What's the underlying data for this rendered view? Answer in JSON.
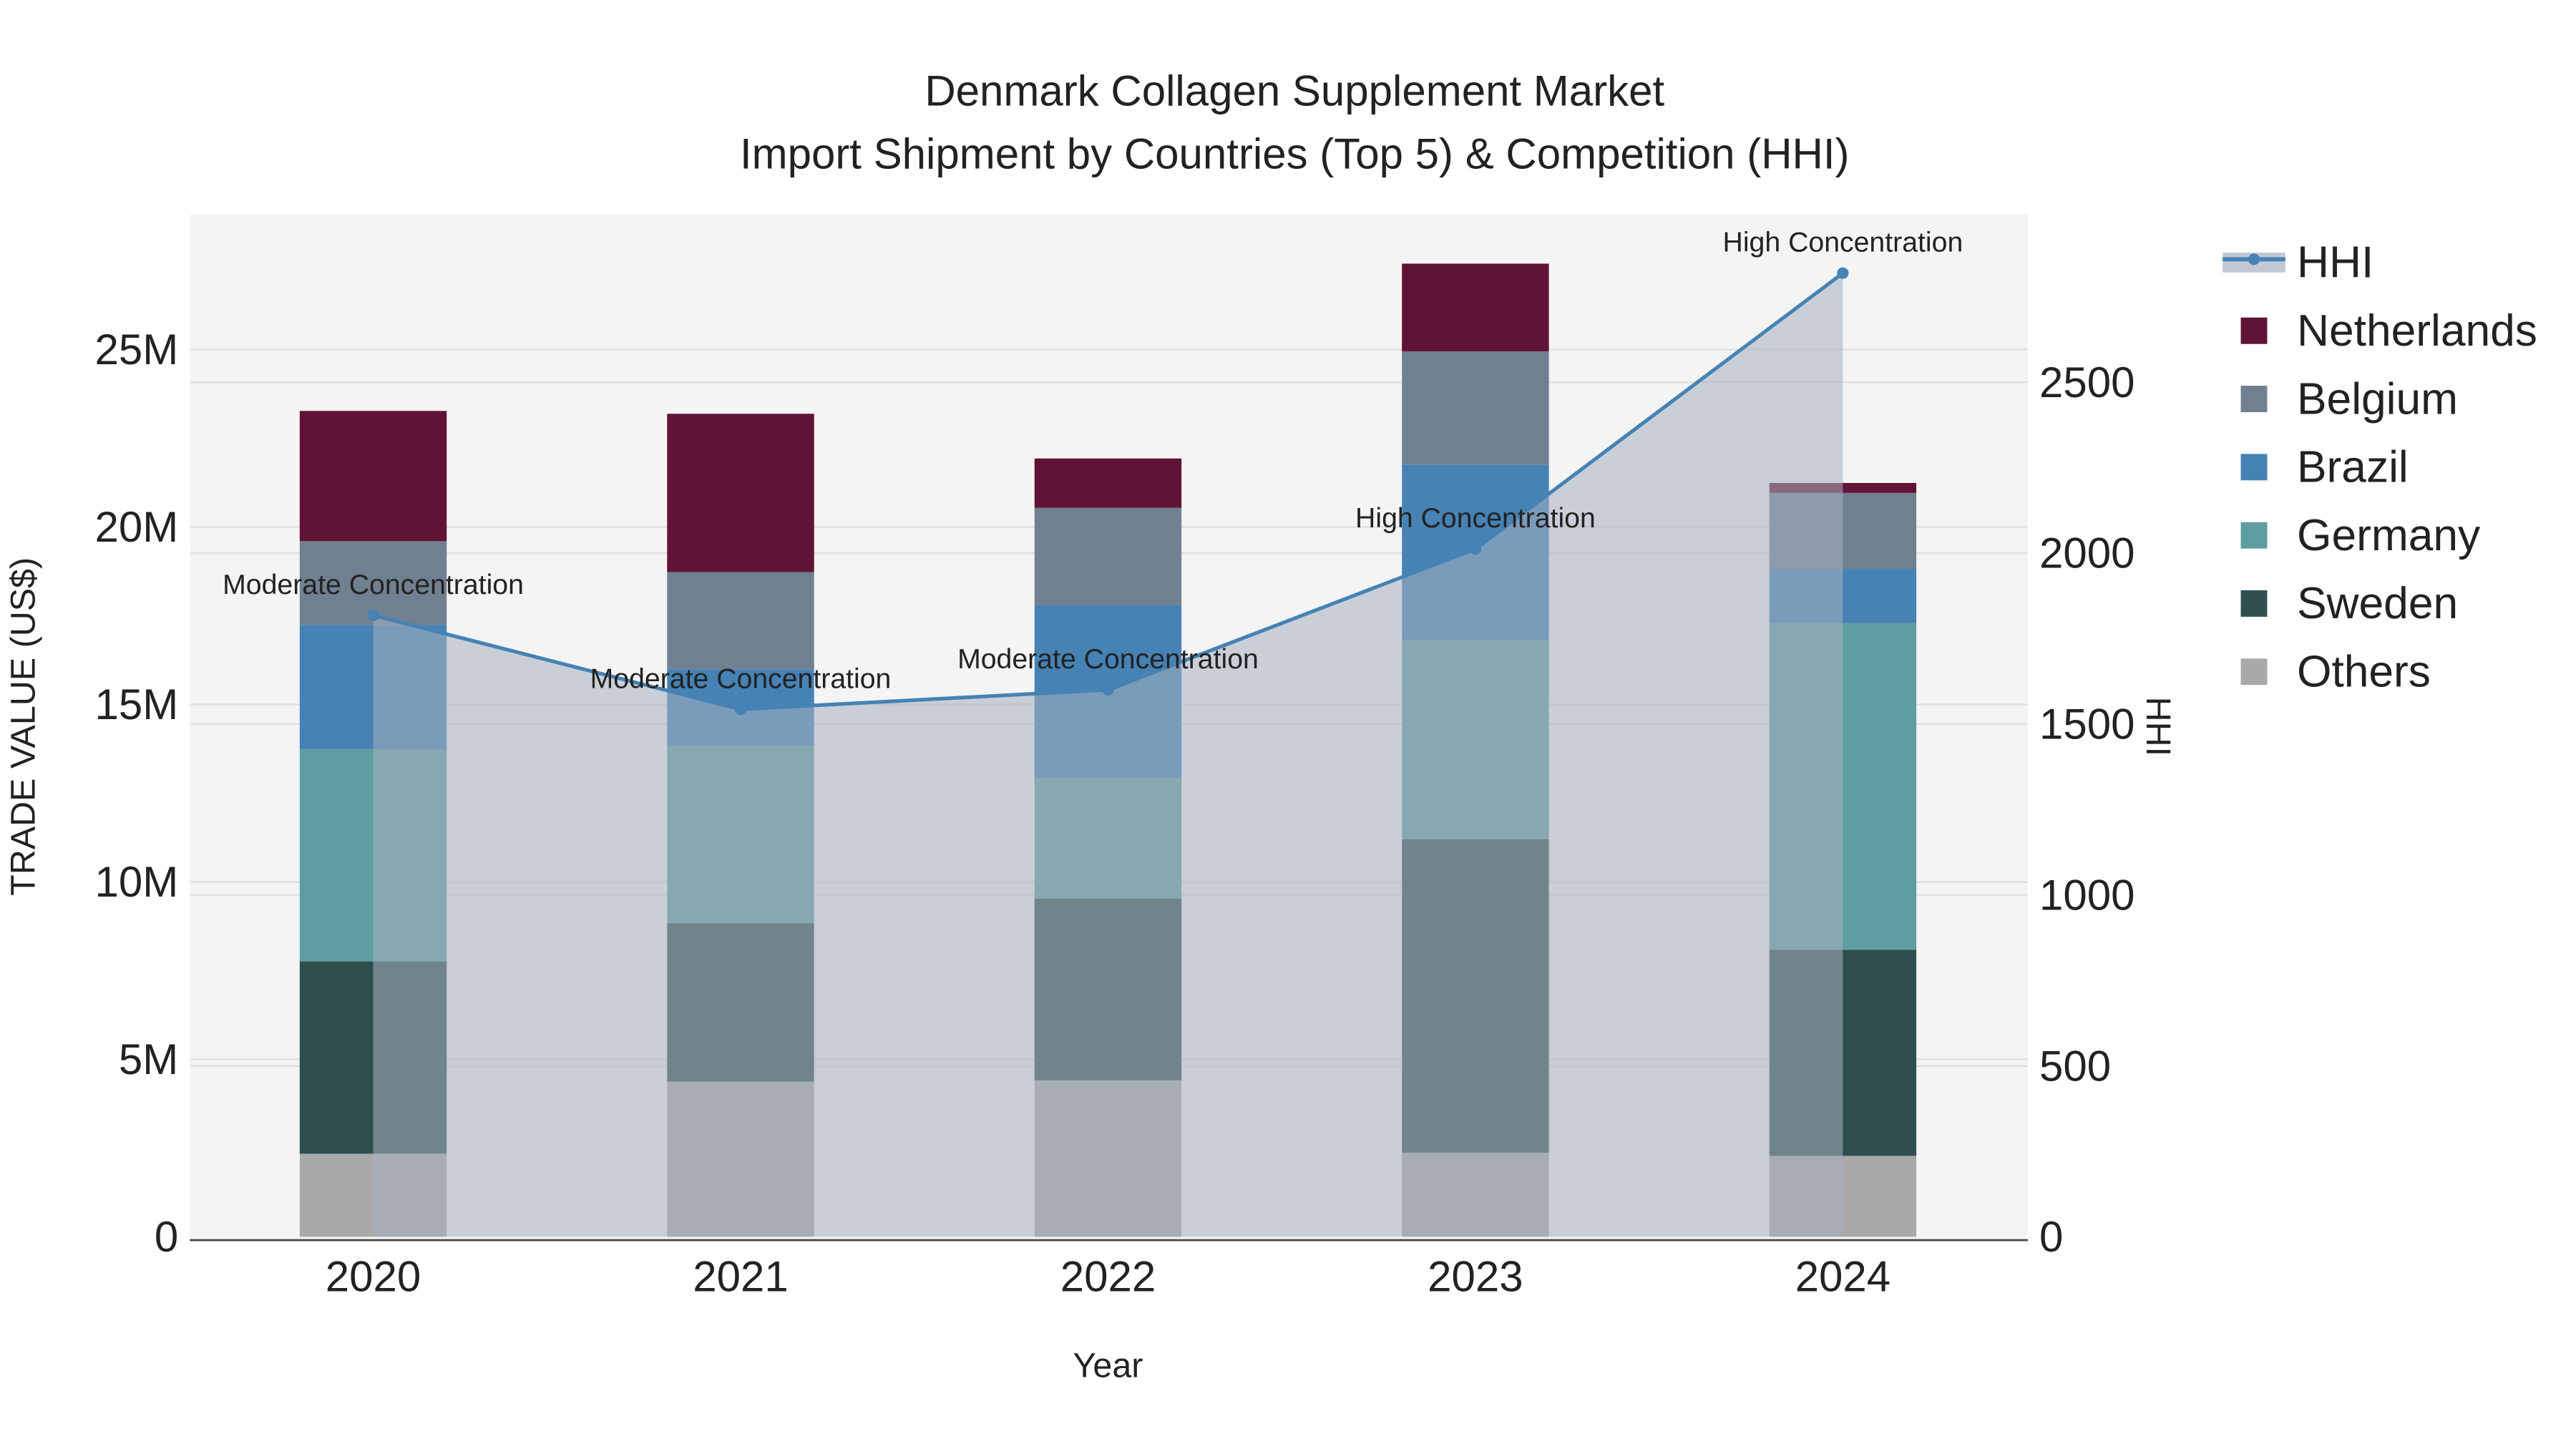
{
  "chart_data": {
    "type": "bar",
    "title": "Denmark Collagen Supplement Market",
    "subtitle": "Import Shipment by Countries (Top 5) & Competition (HHI)",
    "xlabel": "Year",
    "ylabel": "TRADE VALUE (US$)",
    "y2label": "HHI",
    "categories": [
      "2020",
      "2021",
      "2022",
      "2023",
      "2024"
    ],
    "ylim": [
      0,
      28800000
    ],
    "y2lim": [
      0,
      2990
    ],
    "yticks": [
      {
        "v": 0,
        "label": "0"
      },
      {
        "v": 5000000,
        "label": "5M"
      },
      {
        "v": 10000000,
        "label": "10M"
      },
      {
        "v": 15000000,
        "label": "15M"
      },
      {
        "v": 20000000,
        "label": "20M"
      },
      {
        "v": 25000000,
        "label": "25M"
      }
    ],
    "y2ticks": [
      0,
      500,
      1000,
      1500,
      2000,
      2500
    ],
    "series": [
      {
        "name": "Others",
        "color": "#a9a9a9",
        "values": [
          2340000,
          4370000,
          4410000,
          2370000,
          2280000
        ]
      },
      {
        "name": "Sweden",
        "color": "#2f4f4f",
        "values": [
          5420000,
          4460000,
          5120000,
          8830000,
          5810000
        ]
      },
      {
        "name": "Germany",
        "color": "#5f9ea0",
        "values": [
          5990000,
          5020000,
          3390000,
          5620000,
          9200000
        ]
      },
      {
        "name": "Brazil",
        "color": "#4682b4",
        "values": [
          3490000,
          2140000,
          4880000,
          4930000,
          1530000
        ]
      },
      {
        "name": "Belgium",
        "color": "#708090",
        "values": [
          2360000,
          2740000,
          2740000,
          3200000,
          2140000
        ]
      },
      {
        "name": "Netherlands",
        "color": "#601335",
        "values": [
          3670000,
          4460000,
          1390000,
          2470000,
          280000
        ]
      }
    ],
    "hhi": {
      "name": "HHI",
      "color": "#4682b4",
      "values": [
        1818,
        1543,
        1600,
        2012,
        2819
      ],
      "annotations": [
        "Moderate Concentration",
        "Moderate Concentration",
        "Moderate Concentration",
        "High Concentration",
        "High Concentration"
      ]
    },
    "legend": {
      "placement": "right",
      "order": [
        "HHI",
        "Netherlands",
        "Belgium",
        "Brazil",
        "Germany",
        "Sweden",
        "Others"
      ]
    },
    "grid": true
  }
}
